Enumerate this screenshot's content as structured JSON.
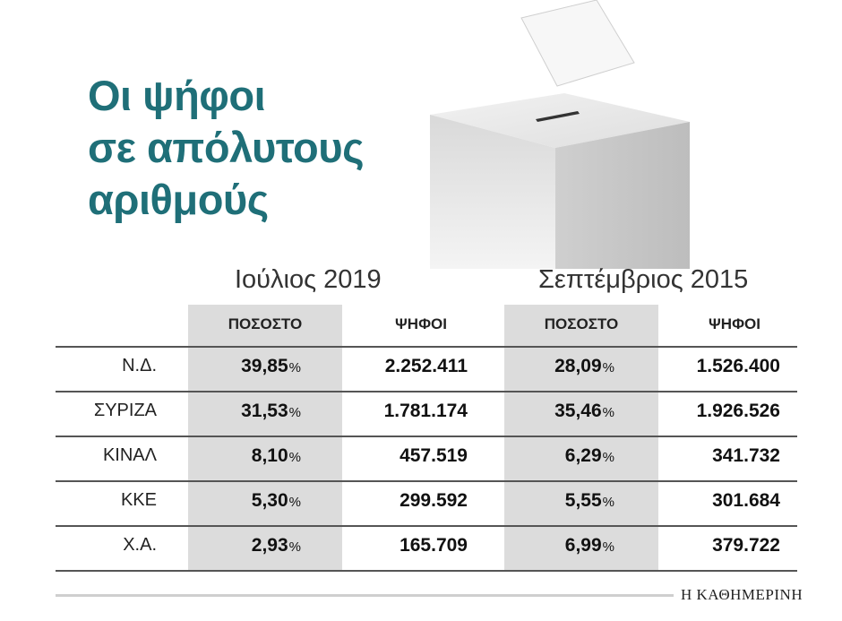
{
  "chart_data": {
    "type": "table",
    "title": [
      "Οι ψήφοι",
      "σε απόλυτους",
      "αριθμούς"
    ],
    "periods": [
      "Ιούλιος 2019",
      "Σεπτέμβριος 2015"
    ],
    "column_headers": [
      "ΠΟΣΟΣΤΟ",
      "ΨΗΦΟΙ",
      "ΠΟΣΟΣΤΟ",
      "ΨΗΦΟΙ"
    ],
    "pct_sign": "%",
    "rows": [
      {
        "party": "Ν.Δ.",
        "pct2019": "39,85",
        "votes2019": "2.252.411",
        "pct2015": "28,09",
        "votes2015": "1.526.400"
      },
      {
        "party": "ΣΥΡΙΖΑ",
        "pct2019": "31,53",
        "votes2019": "1.781.174",
        "pct2015": "35,46",
        "votes2015": "1.926.526"
      },
      {
        "party": "ΚΙΝΑΛ",
        "pct2019": "8,10",
        "votes2019": "457.519",
        "pct2015": "6,29",
        "votes2015": "341.732"
      },
      {
        "party": "ΚΚΕ",
        "pct2019": "5,30",
        "votes2019": "299.592",
        "pct2015": "5,55",
        "votes2015": "301.684"
      },
      {
        "party": "Χ.Α.",
        "pct2019": "2,93",
        "votes2019": "165.709",
        "pct2015": "6,99",
        "votes2015": "379.722"
      }
    ]
  },
  "source": "Η ΚΑΘΗΜΕΡΙΝΗ",
  "colors": {
    "title": "#1f6f78",
    "band": "#dcdcdc"
  },
  "decoration": "ballot-box-icon"
}
